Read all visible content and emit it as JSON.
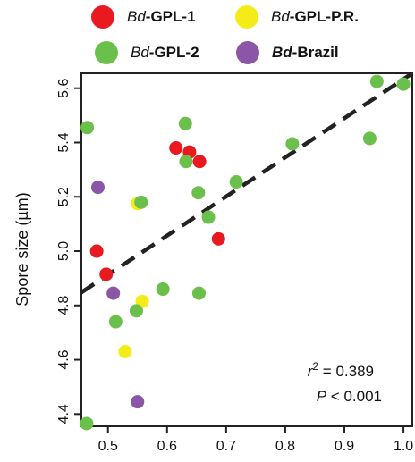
{
  "chart_data": {
    "type": "scatter",
    "ylabel": "Spore size (µm)",
    "xlabel": "",
    "xlim": [
      0.455,
      1.015
    ],
    "ylim": [
      4.355,
      5.655
    ],
    "x_ticks": [
      "0.5",
      "0.6",
      "0.7",
      "0.8",
      "0.9",
      "1.0"
    ],
    "y_ticks": [
      "4.4",
      "4.6",
      "4.8",
      "5.0",
      "5.2",
      "5.4",
      "5.6"
    ],
    "legend_placement": "top",
    "grid": false,
    "legend": [
      {
        "prefix": "Bd",
        "suffix": "-GPL-1",
        "color": "#e8191f",
        "prefix_bold": false
      },
      {
        "prefix": "Bd",
        "suffix": "-GPL-P.R.",
        "color": "#f3ec19",
        "prefix_bold": false
      },
      {
        "prefix": "Bd",
        "suffix": "-GPL-2",
        "color": "#6bbf4b",
        "prefix_bold": false
      },
      {
        "prefix": "Bd",
        "suffix": "-Brazil",
        "color": "#8b55a8",
        "prefix_bold": true
      }
    ],
    "regression": {
      "x0": 0.455,
      "y0": 4.848,
      "x1": 1.015,
      "y1": 5.655,
      "style": "dashed"
    },
    "annotation": {
      "r2_label": "r",
      "r2_sup": "2",
      "r2_value": " = 0.389",
      "p_label": "P",
      "p_value": " < 0.001"
    },
    "series": [
      {
        "name": "Bd-GPL-1",
        "color": "#e8191f",
        "x": [
          0.481,
          0.497,
          0.615,
          0.638,
          0.655,
          0.687
        ],
        "y": [
          5.0,
          4.915,
          5.38,
          5.365,
          5.33,
          5.045
        ]
      },
      {
        "name": "Bd-GPL-P.R.",
        "color": "#f3ec19",
        "x": [
          0.55,
          0.558,
          0.529
        ],
        "y": [
          5.175,
          4.815,
          4.63
        ]
      },
      {
        "name": "Bd-GPL-2",
        "color": "#6bbf4b",
        "x": [
          0.465,
          0.556,
          0.631,
          0.632,
          0.653,
          0.67,
          0.717,
          0.812,
          0.943,
          0.955,
          1.0,
          0.593,
          0.654,
          0.548,
          0.513,
          0.464
        ],
        "y": [
          5.455,
          5.18,
          5.47,
          5.33,
          5.215,
          5.125,
          5.255,
          5.395,
          5.415,
          5.625,
          5.615,
          4.86,
          4.845,
          4.78,
          4.74,
          4.365
        ]
      },
      {
        "name": "Bd-Brazil",
        "color": "#8b55a8",
        "x": [
          0.483,
          0.509,
          0.55
        ],
        "y": [
          5.235,
          4.845,
          4.445
        ]
      }
    ]
  }
}
